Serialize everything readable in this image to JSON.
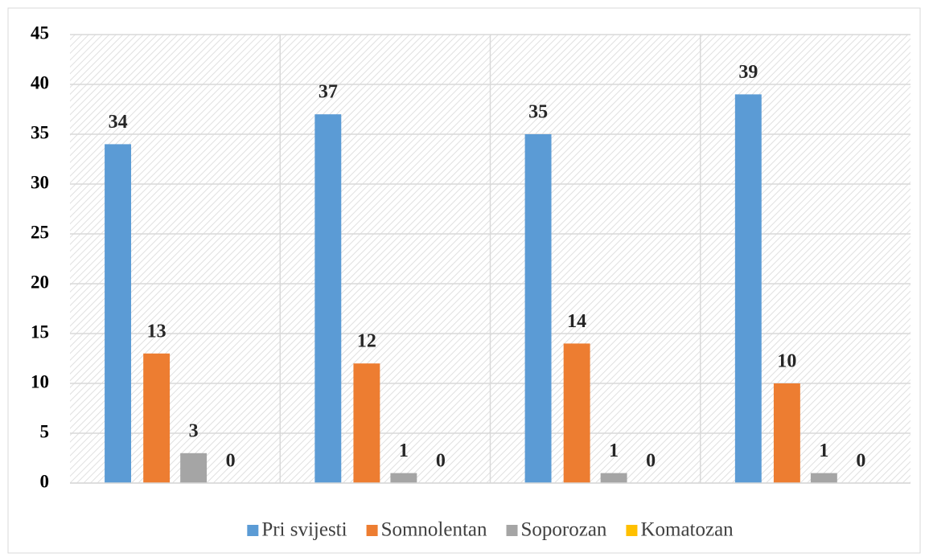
{
  "chart_data": {
    "type": "bar",
    "categories": [
      null,
      null,
      null,
      null
    ],
    "series": [
      {
        "name": "Pri svijesti",
        "color": "#5b9bd5",
        "values": [
          34,
          37,
          35,
          39
        ]
      },
      {
        "name": "Somnolentan",
        "color": "#ed7d31",
        "values": [
          13,
          12,
          14,
          10
        ]
      },
      {
        "name": "Soporozan",
        "color": "#a5a5a5",
        "values": [
          3,
          1,
          1,
          1
        ]
      },
      {
        "name": "Komatozan",
        "color": "#ffc000",
        "values": [
          0,
          0,
          0,
          0
        ]
      }
    ],
    "ylim": [
      0,
      45
    ],
    "yticks": [
      0,
      5,
      10,
      15,
      20,
      25,
      30,
      35,
      40,
      45
    ],
    "grid": true,
    "legend": "bottom"
  }
}
